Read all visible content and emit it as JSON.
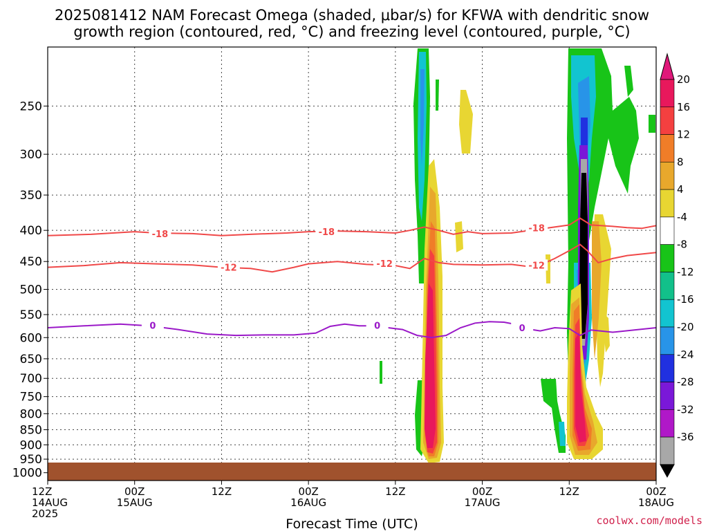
{
  "chart_data": {
    "type": "heatmap",
    "title_line1": "2025081412 NAM Forecast Omega (shaded, μbar/s) for KFWA with dendritic snow",
    "title_line2": "growth region (contoured, red, °C) and freezing level (contoured, purple, °C)",
    "xlabel": "Forecast Time (UTC)",
    "credit": "coolwx.com/models",
    "y_axis": {
      "scale": "pressure (hPa), reversed",
      "ticks": [
        250,
        300,
        350,
        400,
        450,
        500,
        550,
        600,
        650,
        700,
        750,
        800,
        850,
        900,
        950,
        1000
      ],
      "range": [
        200,
        1030
      ]
    },
    "x_axis": {
      "range_hours": [
        0,
        84
      ],
      "ticks": [
        {
          "hour": 0,
          "l1": "12Z",
          "l2": "14AUG",
          "l3": "2025"
        },
        {
          "hour": 12,
          "l1": "00Z",
          "l2": "15AUG",
          "l3": ""
        },
        {
          "hour": 24,
          "l1": "12Z",
          "l2": "",
          "l3": ""
        },
        {
          "hour": 36,
          "l1": "00Z",
          "l2": "16AUG",
          "l3": ""
        },
        {
          "hour": 48,
          "l1": "12Z",
          "l2": "",
          "l3": ""
        },
        {
          "hour": 60,
          "l1": "00Z",
          "l2": "17AUG",
          "l3": ""
        },
        {
          "hour": 72,
          "l1": "12Z",
          "l2": "",
          "l3": ""
        },
        {
          "hour": 84,
          "l1": "00Z",
          "l2": "18AUG",
          "l3": ""
        }
      ]
    },
    "colorbar": {
      "levels": [
        {
          "label": "20",
          "color": "#e8185c"
        },
        {
          "label": "16",
          "color": "#f44040"
        },
        {
          "label": "12",
          "color": "#f07d28"
        },
        {
          "label": "8",
          "color": "#e8a82c"
        },
        {
          "label": "4",
          "color": "#e8d632"
        },
        {
          "label": "-4",
          "color": "#ffffff"
        },
        {
          "label": "-8",
          "color": "#18c418"
        },
        {
          "label": "-12",
          "color": "#12c08a"
        },
        {
          "label": "-16",
          "color": "#12c4d0"
        },
        {
          "label": "-20",
          "color": "#2894e8"
        },
        {
          "label": "-24",
          "color": "#2030e0"
        },
        {
          "label": "-28",
          "color": "#7a18d8"
        },
        {
          "label": "-32",
          "color": "#b018c8"
        },
        {
          "label": "-36",
          "color": "#a8a8a8"
        }
      ],
      "top_color": "#e0187a",
      "bottom_color": "#000000"
    },
    "contours": [
      {
        "value": "-18",
        "color": "#f04848",
        "labels": [
          {
            "hour": 15.5,
            "p": 405
          },
          {
            "hour": 38.5,
            "p": 402
          },
          {
            "hour": 67.5,
            "p": 396
          }
        ],
        "points": [
          [
            0,
            408
          ],
          [
            6,
            406
          ],
          [
            12,
            402
          ],
          [
            15,
            404
          ],
          [
            20,
            405
          ],
          [
            24,
            408
          ],
          [
            28,
            406
          ],
          [
            33,
            404
          ],
          [
            36,
            402
          ],
          [
            40,
            401
          ],
          [
            44,
            402
          ],
          [
            48,
            404
          ],
          [
            50,
            400
          ],
          [
            52,
            395
          ],
          [
            54,
            400
          ],
          [
            56,
            406
          ],
          [
            58,
            402
          ],
          [
            60,
            405
          ],
          [
            64,
            404
          ],
          [
            68,
            398
          ],
          [
            72,
            392
          ],
          [
            73.5,
            382
          ],
          [
            75,
            392
          ],
          [
            78,
            394
          ],
          [
            80,
            396
          ],
          [
            82,
            397
          ],
          [
            84,
            393
          ]
        ]
      },
      {
        "value": "-12",
        "color": "#f04848",
        "labels": [
          {
            "hour": 25,
            "p": 460
          },
          {
            "hour": 46.5,
            "p": 453
          },
          {
            "hour": 67.5,
            "p": 456
          }
        ],
        "points": [
          [
            0,
            460
          ],
          [
            5,
            457
          ],
          [
            10,
            452
          ],
          [
            15,
            454
          ],
          [
            20,
            456
          ],
          [
            24,
            460
          ],
          [
            28,
            462
          ],
          [
            31,
            468
          ],
          [
            34,
            460
          ],
          [
            36,
            454
          ],
          [
            40,
            450
          ],
          [
            44,
            455
          ],
          [
            48,
            457
          ],
          [
            50,
            462
          ],
          [
            52,
            445
          ],
          [
            54,
            452
          ],
          [
            56,
            455
          ],
          [
            60,
            456
          ],
          [
            64,
            455
          ],
          [
            66,
            458
          ],
          [
            68,
            456
          ],
          [
            70,
            445
          ],
          [
            72,
            432
          ],
          [
            73.5,
            422
          ],
          [
            74.5,
            432
          ],
          [
            76,
            452
          ],
          [
            78,
            445
          ],
          [
            80,
            440
          ],
          [
            84,
            435
          ]
        ]
      },
      {
        "value": "0",
        "color": "#9a18c8",
        "labels": [
          {
            "hour": 14.5,
            "p": 573
          },
          {
            "hour": 45.5,
            "p": 573
          },
          {
            "hour": 65.5,
            "p": 578
          }
        ],
        "points": [
          [
            0,
            578
          ],
          [
            5,
            574
          ],
          [
            10,
            570
          ],
          [
            14,
            574
          ],
          [
            18,
            582
          ],
          [
            22,
            592
          ],
          [
            26,
            595
          ],
          [
            30,
            594
          ],
          [
            34,
            594
          ],
          [
            37,
            590
          ],
          [
            39,
            575
          ],
          [
            41,
            570
          ],
          [
            43,
            574
          ],
          [
            45,
            574
          ],
          [
            47,
            578
          ],
          [
            49,
            582
          ],
          [
            51,
            595
          ],
          [
            53,
            600
          ],
          [
            55,
            595
          ],
          [
            57,
            578
          ],
          [
            59,
            568
          ],
          [
            61,
            565
          ],
          [
            63,
            566
          ],
          [
            65,
            572
          ],
          [
            66,
            580
          ],
          [
            68,
            585
          ],
          [
            70,
            578
          ],
          [
            72,
            580
          ],
          [
            73.5,
            595
          ],
          [
            75,
            583
          ],
          [
            78,
            588
          ],
          [
            81,
            583
          ],
          [
            84,
            578
          ]
        ]
      }
    ]
  }
}
